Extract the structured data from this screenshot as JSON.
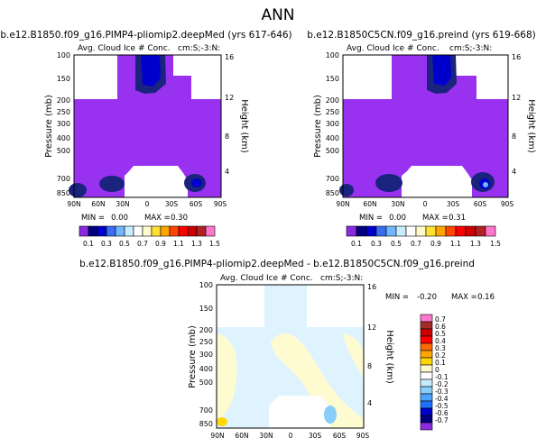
{
  "figure_title": "ANN",
  "chart_data": [
    {
      "type": "heatmap",
      "title": "b.e12.B1850.f09_g16.PIMP4-pliomip2.deepMed (yrs 617-646)",
      "subtitle_left": "Avg. Cloud Ice # Conc.",
      "subtitle_right": "cm:S;-3:N:",
      "xlabel": "",
      "ylabel": "Pressure (mb)",
      "y2label": "Height (km)",
      "x_ticks": [
        "90N",
        "60N",
        "30N",
        "0",
        "30S",
        "60S",
        "90S"
      ],
      "y_ticks": [
        "100",
        "150",
        "200",
        "250",
        "300",
        "400",
        "500",
        "700",
        "850"
      ],
      "y2_ticks": [
        "16",
        "12",
        "8",
        "4"
      ],
      "ylim": [
        1000,
        100
      ],
      "min_label": "MIN =",
      "min_value": "0.00",
      "max_label": "MAX =",
      "max_value": "0.30",
      "colorbar_levels": [
        "0.1",
        "0.3",
        "0.5",
        "0.7",
        "0.9",
        "1.1",
        "1.3",
        "1.5"
      ]
    },
    {
      "type": "heatmap",
      "title": "b.e12.B1850C5CN.f09_g16.preind (yrs 619-668)",
      "subtitle_left": "Avg. Cloud Ice # Conc.",
      "subtitle_right": "cm:S;-3:N:",
      "xlabel": "",
      "ylabel": "Pressure (mb)",
      "y2label": "Height (km)",
      "x_ticks": [
        "90N",
        "60N",
        "30N",
        "0",
        "30S",
        "60S",
        "90S"
      ],
      "y_ticks": [
        "100",
        "150",
        "200",
        "250",
        "300",
        "400",
        "500",
        "700",
        "850"
      ],
      "y2_ticks": [
        "16",
        "12",
        "8",
        "4"
      ],
      "ylim": [
        1000,
        100
      ],
      "min_label": "MIN =",
      "min_value": "0.00",
      "max_label": "MAX =",
      "max_value": "0.31",
      "colorbar_levels": [
        "0.1",
        "0.3",
        "0.5",
        "0.7",
        "0.9",
        "1.1",
        "1.3",
        "1.5"
      ]
    },
    {
      "type": "heatmap",
      "title": "b.e12.B1850.f09_g16.PIMP4-pliomip2.deepMed - b.e12.B1850C5CN.f09_g16.preind",
      "subtitle_left": "Avg. Cloud Ice # Conc.",
      "subtitle_right": "cm:S;-3:N:",
      "xlabel": "",
      "ylabel": "Pressure (mb)",
      "y2label": "Height (km)",
      "x_ticks": [
        "90N",
        "60N",
        "30N",
        "0",
        "30S",
        "60S",
        "90S"
      ],
      "y_ticks": [
        "100",
        "150",
        "200",
        "250",
        "300",
        "400",
        "500",
        "700",
        "850"
      ],
      "y2_ticks": [
        "16",
        "12",
        "8",
        "4"
      ],
      "ylim": [
        1000,
        100
      ],
      "min_label": "MIN =",
      "min_value": "-0.20",
      "max_label": "MAX =",
      "max_value": "0.16",
      "colorbar_levels": [
        "0.7",
        "0.6",
        "0.5",
        "0.4",
        "0.3",
        "0.2",
        "0.1",
        "0",
        "-0.1",
        "-0.2",
        "-0.3",
        "-0.4",
        "-0.5",
        "-0.6",
        "-0.7"
      ]
    }
  ],
  "colors": {
    "abs_scale": [
      "#8a2be2",
      "#000080",
      "#0000cd",
      "#3a6df0",
      "#6fb7ff",
      "#c7ecff",
      "#ffffff",
      "#fffacd",
      "#ffe135",
      "#ffa500",
      "#ff4500",
      "#ff0000",
      "#cd0000",
      "#b22222",
      "#ff77cc"
    ],
    "diff_scale": [
      "#ff77cc",
      "#a52a2a",
      "#cd0000",
      "#ff0000",
      "#ff6a00",
      "#ffa500",
      "#ffd700",
      "#fffacd",
      "#ffffff",
      "#c7ecff",
      "#87cefa",
      "#4aa3ff",
      "#1e6fff",
      "#0000cd",
      "#000080",
      "#8a2be2"
    ],
    "panel_purple": "#9932f0",
    "panel_blue": "#1a237e",
    "diff_bg": "#dff3ff",
    "diff_yellow": "#fffbd0"
  }
}
